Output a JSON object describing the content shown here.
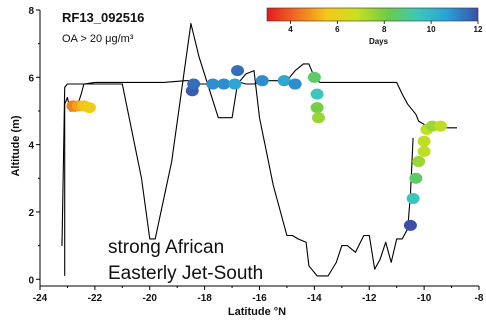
{
  "chart_data": {
    "type": "line",
    "title": "RF13_092516",
    "subtitle": "OA > 20 μg/m³",
    "xlabel": "Latitude °N",
    "ylabel": "Altitude (m)",
    "xlim": [
      -24,
      -8
    ],
    "ylim": [
      -0.2,
      8
    ],
    "xticks": [
      -24,
      -22,
      -20,
      -18,
      -16,
      -14,
      -12,
      -10,
      -8
    ],
    "yticks": [
      0,
      2,
      4,
      6,
      8
    ],
    "grid": false,
    "annotations": [
      "strong African",
      "Easterly Jet-South"
    ],
    "colorbar": {
      "label": "Days",
      "range": [
        3,
        12
      ],
      "ticks": [
        4,
        6,
        8,
        10,
        12
      ],
      "colors": [
        "#e41a1c",
        "#f07020",
        "#f5c918",
        "#c8e020",
        "#6ccc48",
        "#3cc8b8",
        "#2a9fd8",
        "#3b4fa8"
      ],
      "position": "top-right"
    },
    "series": [
      {
        "role": "flight-track",
        "color": "#000000",
        "x": [
          -23.1,
          -23.1,
          -23.0,
          -22.9,
          -22.7,
          -22.5,
          -22.4,
          -22.0,
          -21.0,
          -20.0,
          -19.5,
          -18.7,
          -18.5,
          -18.2,
          -17.7,
          -17.5,
          -17.2,
          -17.0,
          -16.7,
          -16.5,
          -16.2,
          -16.0,
          -15.8,
          -15.5,
          -15.0,
          -14.7,
          -14.4,
          -14.2,
          -14.0,
          -13.8,
          -13.6,
          -13.3,
          -13.0,
          -12.5,
          -12.0,
          -11.5,
          -11.0,
          -10.8,
          -10.6,
          -10.3,
          -10.2,
          -10.0,
          -9.8,
          -9.6,
          -9.4,
          -9.2,
          -9.0,
          -8.8
        ],
        "y": [
          0.1,
          5.2,
          5.4,
          5.0,
          5.0,
          5.5,
          5.8,
          5.85,
          5.85,
          5.85,
          5.85,
          5.9,
          5.9,
          5.8,
          5.8,
          5.85,
          5.85,
          5.9,
          5.85,
          5.8,
          5.8,
          5.85,
          5.9,
          5.9,
          5.9,
          6.2,
          6.4,
          6.4,
          6.0,
          5.85,
          5.85,
          5.85,
          5.85,
          5.85,
          5.85,
          5.85,
          5.85,
          5.5,
          5.2,
          4.9,
          4.7,
          4.6,
          4.55,
          4.5,
          4.5,
          4.5,
          4.5,
          4.5
        ]
      },
      {
        "role": "flight-track",
        "color": "#000000",
        "x": [
          -23.2,
          -23.2,
          -23.1,
          -23.0,
          -21.0,
          -20.3,
          -20.0,
          -19.8,
          -19.2,
          -18.5,
          -18.2,
          -17.5,
          -17.0,
          -16.8,
          -16.5,
          -16.2,
          -16.0,
          -15.8,
          -15.5,
          -15.0,
          -14.8,
          -14.6,
          -14.3,
          -14.2,
          -13.9,
          -13.5,
          -13.2,
          -13.0,
          -12.8,
          -12.5,
          -12.2,
          -12.0,
          -11.8,
          -11.6,
          -11.4,
          -11.2,
          -11.0,
          -10.8,
          -10.6,
          -10.5,
          -10.4
        ],
        "y": [
          1.2,
          1.0,
          5.7,
          5.8,
          5.8,
          3.0,
          1.2,
          1.2,
          3.5,
          7.6,
          6.6,
          4.8,
          4.8,
          5.8,
          6.1,
          6.2,
          4.8,
          4.0,
          2.8,
          1.3,
          1.3,
          1.2,
          1.1,
          0.4,
          0.1,
          0.1,
          0.5,
          1.0,
          1.0,
          0.8,
          1.3,
          1.3,
          0.3,
          0.6,
          1.1,
          0.5,
          1.2,
          1.2,
          1.5,
          2.5,
          4.2
        ]
      },
      {
        "role": "OA-points",
        "points": [
          {
            "x": -22.8,
            "y": 5.15,
            "days": 4.5
          },
          {
            "x": -22.6,
            "y": 5.15,
            "days": 5.0
          },
          {
            "x": -22.4,
            "y": 5.15,
            "days": 5.5
          },
          {
            "x": -22.2,
            "y": 5.1,
            "days": 5.8
          },
          {
            "x": -18.45,
            "y": 5.6,
            "days": 11.8
          },
          {
            "x": -18.4,
            "y": 5.8,
            "days": 11.5
          },
          {
            "x": -17.7,
            "y": 5.8,
            "days": 11.0
          },
          {
            "x": -17.3,
            "y": 5.8,
            "days": 11.0
          },
          {
            "x": -16.9,
            "y": 5.8,
            "days": 10.5
          },
          {
            "x": -16.8,
            "y": 6.2,
            "days": 11.5
          },
          {
            "x": -15.9,
            "y": 5.9,
            "days": 11.0
          },
          {
            "x": -15.1,
            "y": 5.9,
            "days": 10.5
          },
          {
            "x": -14.7,
            "y": 5.8,
            "days": 11.0
          },
          {
            "x": -14.0,
            "y": 6.0,
            "days": 8.5
          },
          {
            "x": -13.9,
            "y": 5.5,
            "days": 9.5
          },
          {
            "x": -13.9,
            "y": 5.1,
            "days": 8.0
          },
          {
            "x": -13.85,
            "y": 4.8,
            "days": 7.5
          },
          {
            "x": -10.5,
            "y": 1.6,
            "days": 12.0
          },
          {
            "x": -10.4,
            "y": 2.4,
            "days": 9.5
          },
          {
            "x": -10.3,
            "y": 3.0,
            "days": 8.5
          },
          {
            "x": -10.2,
            "y": 3.5,
            "days": 7.5
          },
          {
            "x": -10.0,
            "y": 3.8,
            "days": 7.0
          },
          {
            "x": -10.0,
            "y": 4.1,
            "days": 7.0
          },
          {
            "x": -9.9,
            "y": 4.45,
            "days": 7.0
          },
          {
            "x": -9.7,
            "y": 4.55,
            "days": 7.5
          },
          {
            "x": -9.4,
            "y": 4.55,
            "days": 7.0
          }
        ]
      }
    ]
  }
}
